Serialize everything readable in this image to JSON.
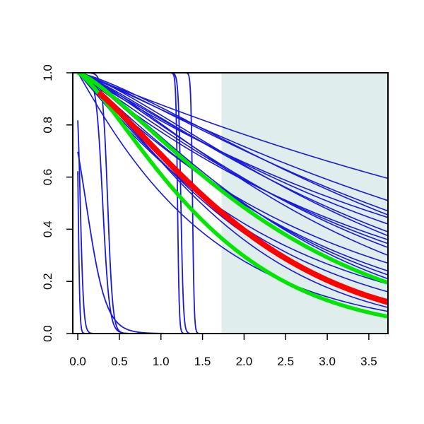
{
  "chart_data": {
    "type": "line",
    "title": "",
    "xlabel": "",
    "ylabel": "",
    "xlim": [
      -0.06,
      3.73
    ],
    "ylim": [
      0.0,
      1.0
    ],
    "x_ticks": [
      0.0,
      0.5,
      1.0,
      1.5,
      2.0,
      2.5,
      3.0,
      3.5
    ],
    "x_tick_labels": [
      "0.0",
      "0.5",
      "1.0",
      "1.5",
      "2.0",
      "2.5",
      "3.0",
      "3.5"
    ],
    "y_ticks": [
      0.0,
      0.2,
      0.4,
      0.6,
      0.8,
      1.0
    ],
    "y_tick_labels": [
      "0.0",
      "0.2",
      "0.4",
      "0.6",
      "0.8",
      "1.0"
    ],
    "grid": false,
    "shaded_region": {
      "x_start": 1.73,
      "x_end": 3.73,
      "color": "#e0eded"
    },
    "colors": {
      "sample": "#1a1adb",
      "estimate": "#ff0000",
      "band": "#00e600",
      "axis": "#000000"
    },
    "decay_curves": [
      {
        "end_value": 0.595
      },
      {
        "end_value": 0.51
      },
      {
        "end_value": 0.47
      },
      {
        "end_value": 0.455
      },
      {
        "end_value": 0.445
      },
      {
        "end_value": 0.42
      },
      {
        "end_value": 0.39
      },
      {
        "end_value": 0.375
      },
      {
        "end_value": 0.36
      },
      {
        "end_value": 0.345
      },
      {
        "end_value": 0.33
      },
      {
        "end_value": 0.3
      },
      {
        "end_value": 0.27
      },
      {
        "end_value": 0.24
      },
      {
        "end_value": 0.225
      },
      {
        "end_value": 0.21
      },
      {
        "end_value": 0.19
      },
      {
        "end_value": 0.16
      },
      {
        "end_value": 0.13
      },
      {
        "end_value": 0.1
      },
      {
        "end_value": 0.085
      }
    ],
    "step_curves": [
      {
        "midpoint": 0.005,
        "steepness": 0.01
      },
      {
        "midpoint": 0.03,
        "steepness": 0.02
      },
      {
        "midpoint": 0.1,
        "steepness": 0.12
      },
      {
        "midpoint": 0.3,
        "steepness": 0.04
      },
      {
        "midpoint": 0.36,
        "steepness": 0.03
      },
      {
        "midpoint": 1.2,
        "steepness": 0.01
      },
      {
        "midpoint": 1.24,
        "steepness": 0.015
      },
      {
        "midpoint": 1.38,
        "steepness": 0.01
      }
    ],
    "estimate_curve": {
      "end_value": 0.12,
      "start_x": 0.25,
      "start_value": 0.925
    },
    "band_curves": [
      {
        "end_value": 0.195
      },
      {
        "end_value": 0.065
      }
    ]
  }
}
